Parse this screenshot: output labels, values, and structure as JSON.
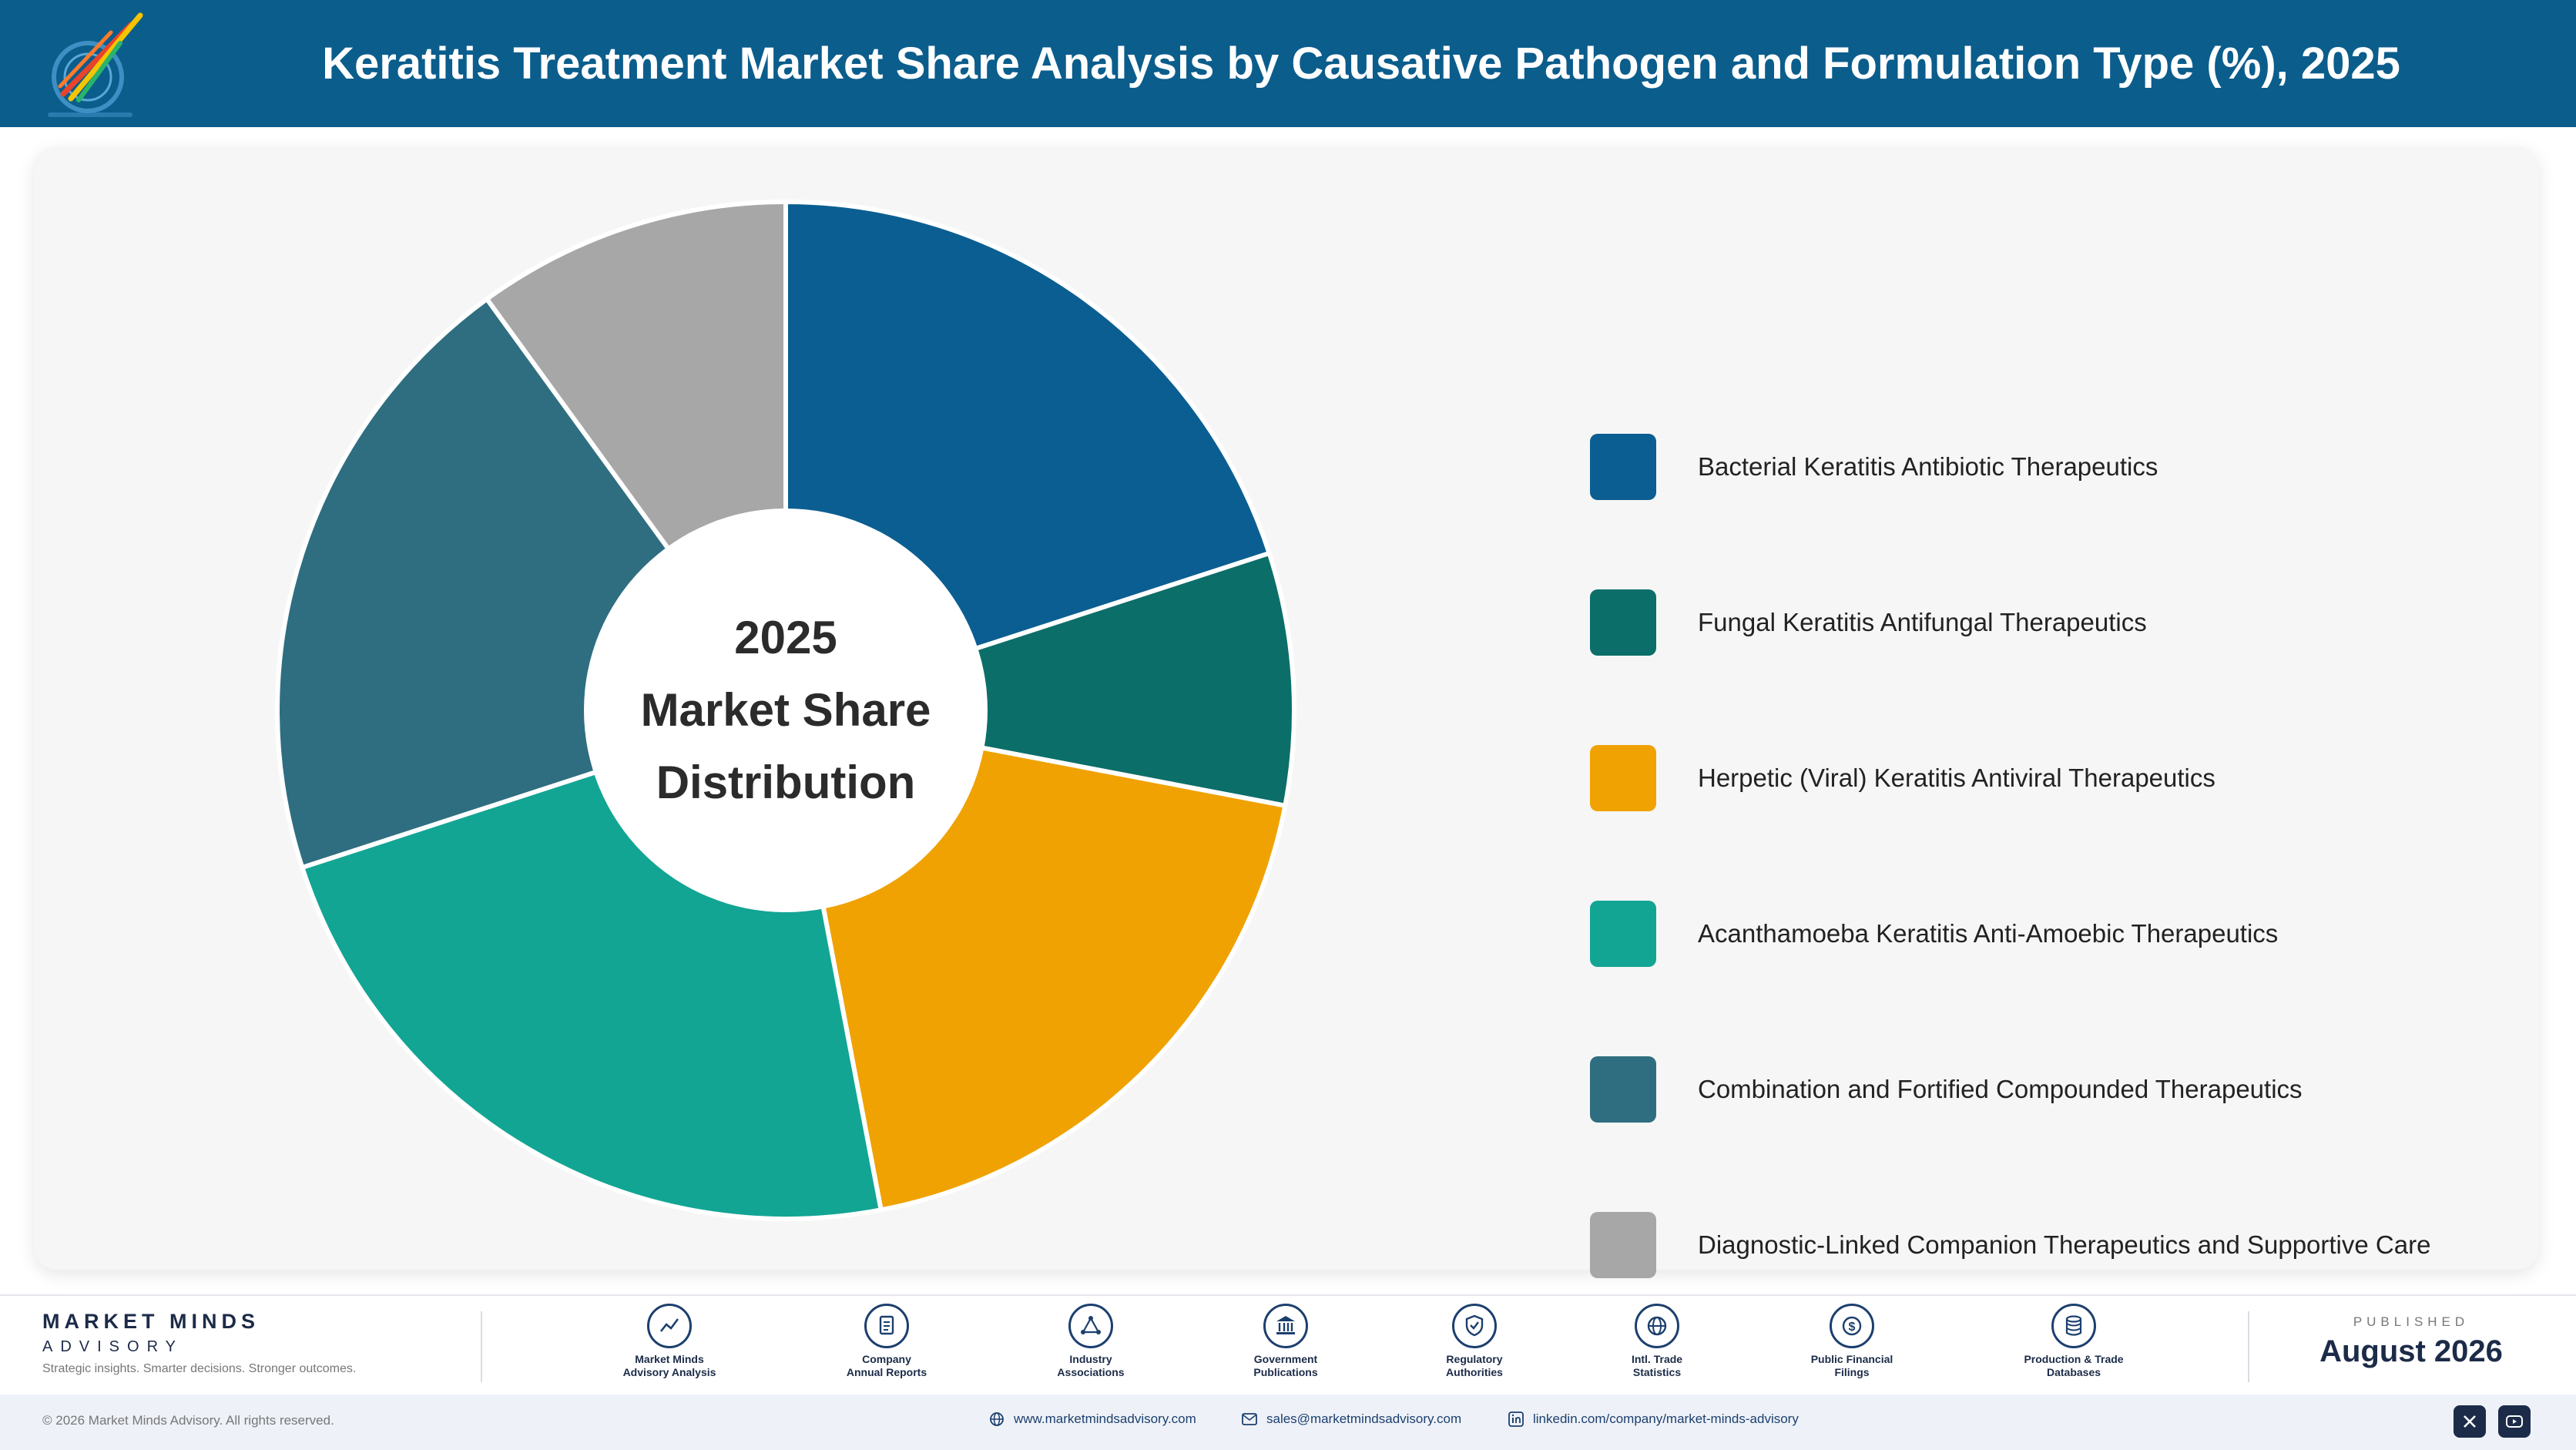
{
  "header": {
    "title": "Keratitis Treatment Market Share Analysis by Causative Pathogen and Formulation Type (%), 2025"
  },
  "chart_data": {
    "type": "pie",
    "donut": true,
    "center_text": [
      "2025",
      "Market Share",
      "Distribution"
    ],
    "legend_position": "right",
    "series": [
      {
        "label": "Bacterial Keratitis Antibiotic Therapeutics",
        "value": 20,
        "color": "#0b5e91"
      },
      {
        "label": "Fungal Keratitis Antifungal Therapeutics",
        "value": 8,
        "color": "#0c6e69"
      },
      {
        "label": "Herpetic (Viral) Keratitis Antiviral Therapeutics",
        "value": 19,
        "color": "#f0a202"
      },
      {
        "label": "Acanthamoeba Keratitis Anti-Amoebic Therapeutics",
        "value": 23,
        "color": "#12a594"
      },
      {
        "label": "Combination and Fortified Compounded Therapeutics",
        "value": 20,
        "color": "#2f6e80"
      },
      {
        "label": "Diagnostic-Linked Companion Therapeutics and Supportive Care",
        "value": 10,
        "color": "#a7a7a7"
      }
    ]
  },
  "footer": {
    "brand_name": "MARKET MINDS",
    "brand_sub": "ADVISORY",
    "tagline": "Strategic insights. Smarter decisions. Stronger outcomes.",
    "sources": [
      {
        "icon": "chart-line-icon",
        "line1": "Market Minds",
        "line2": "Advisory Analysis"
      },
      {
        "icon": "document-icon",
        "line1": "Company",
        "line2": "Annual Reports"
      },
      {
        "icon": "network-icon",
        "line1": "Industry",
        "line2": "Associations"
      },
      {
        "icon": "government-building-icon",
        "line1": "Government",
        "line2": "Publications"
      },
      {
        "icon": "shield-check-icon",
        "line1": "Regulatory",
        "line2": "Authorities"
      },
      {
        "icon": "globe-icon",
        "line1": "Intl. Trade",
        "line2": "Statistics"
      },
      {
        "icon": "dollar-coin-icon",
        "line1": "Public Financial",
        "line2": "Filings"
      },
      {
        "icon": "database-icon",
        "line1": "Production & Trade",
        "line2": "Databases"
      }
    ],
    "published_label": "PUBLISHED",
    "published_date": "August 2026"
  },
  "bottom_bar": {
    "copyright": "© 2026 Market Minds Advisory. All rights reserved.",
    "website": "www.marketmindsadvisory.com",
    "email": "sales@marketmindsadvisory.com",
    "linkedin": "linkedin.com/company/market-minds-advisory"
  },
  "colors": {
    "header_bg": "#0b5d8c",
    "brand_navy": "#1c2b48"
  }
}
